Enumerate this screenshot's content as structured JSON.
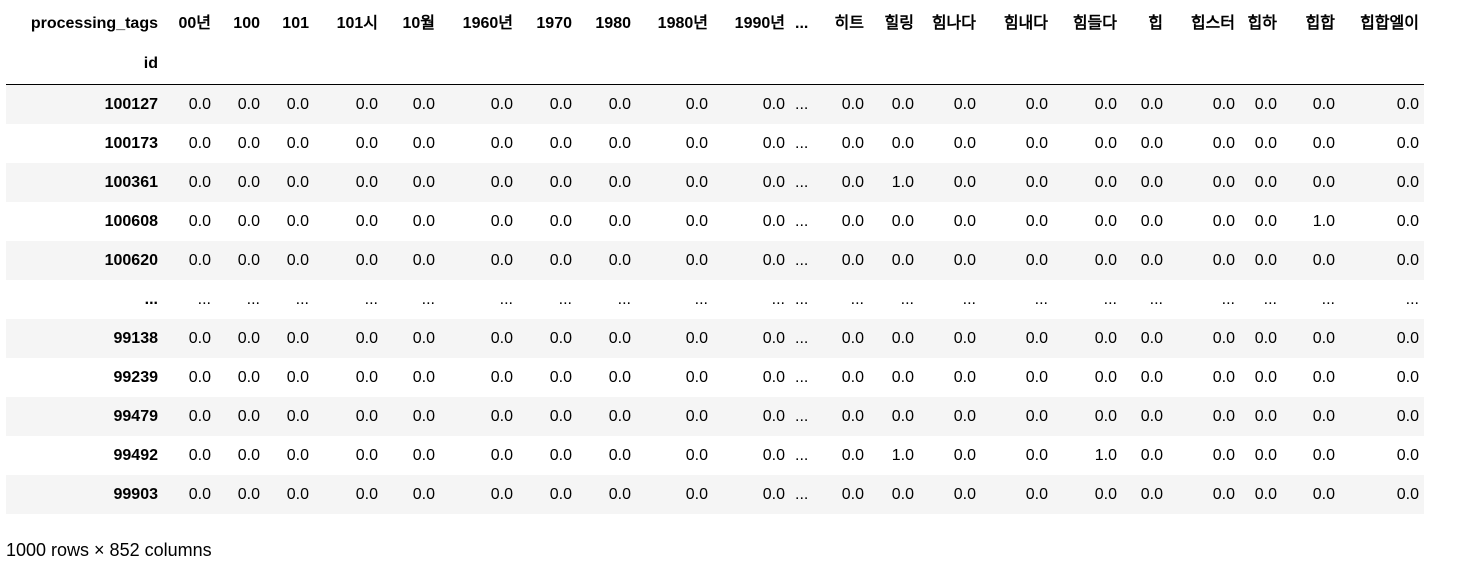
{
  "table": {
    "index_name": "processing_tags",
    "row_index_label": "id",
    "columns": [
      "00년",
      "100",
      "101",
      "101시",
      "10월",
      "1960년",
      "1970",
      "1980",
      "1980년",
      "1990년",
      "...",
      "히트",
      "힐링",
      "힘나다",
      "힘내다",
      "힘들다",
      "힙",
      "힙스터",
      "힙하",
      "힙합",
      "힙합엘이"
    ],
    "rows": [
      {
        "id": "100127",
        "values": [
          "0.0",
          "0.0",
          "0.0",
          "0.0",
          "0.0",
          "0.0",
          "0.0",
          "0.0",
          "0.0",
          "0.0",
          "...",
          "0.0",
          "0.0",
          "0.0",
          "0.0",
          "0.0",
          "0.0",
          "0.0",
          "0.0",
          "0.0",
          "0.0"
        ]
      },
      {
        "id": "100173",
        "values": [
          "0.0",
          "0.0",
          "0.0",
          "0.0",
          "0.0",
          "0.0",
          "0.0",
          "0.0",
          "0.0",
          "0.0",
          "...",
          "0.0",
          "0.0",
          "0.0",
          "0.0",
          "0.0",
          "0.0",
          "0.0",
          "0.0",
          "0.0",
          "0.0"
        ]
      },
      {
        "id": "100361",
        "values": [
          "0.0",
          "0.0",
          "0.0",
          "0.0",
          "0.0",
          "0.0",
          "0.0",
          "0.0",
          "0.0",
          "0.0",
          "...",
          "0.0",
          "1.0",
          "0.0",
          "0.0",
          "0.0",
          "0.0",
          "0.0",
          "0.0",
          "0.0",
          "0.0"
        ]
      },
      {
        "id": "100608",
        "values": [
          "0.0",
          "0.0",
          "0.0",
          "0.0",
          "0.0",
          "0.0",
          "0.0",
          "0.0",
          "0.0",
          "0.0",
          "...",
          "0.0",
          "0.0",
          "0.0",
          "0.0",
          "0.0",
          "0.0",
          "0.0",
          "0.0",
          "1.0",
          "0.0"
        ]
      },
      {
        "id": "100620",
        "values": [
          "0.0",
          "0.0",
          "0.0",
          "0.0",
          "0.0",
          "0.0",
          "0.0",
          "0.0",
          "0.0",
          "0.0",
          "...",
          "0.0",
          "0.0",
          "0.0",
          "0.0",
          "0.0",
          "0.0",
          "0.0",
          "0.0",
          "0.0",
          "0.0"
        ]
      },
      {
        "id": "...",
        "values": [
          "...",
          "...",
          "...",
          "...",
          "...",
          "...",
          "...",
          "...",
          "...",
          "...",
          "...",
          "...",
          "...",
          "...",
          "...",
          "...",
          "...",
          "...",
          "...",
          "...",
          "..."
        ]
      },
      {
        "id": "99138",
        "values": [
          "0.0",
          "0.0",
          "0.0",
          "0.0",
          "0.0",
          "0.0",
          "0.0",
          "0.0",
          "0.0",
          "0.0",
          "...",
          "0.0",
          "0.0",
          "0.0",
          "0.0",
          "0.0",
          "0.0",
          "0.0",
          "0.0",
          "0.0",
          "0.0"
        ]
      },
      {
        "id": "99239",
        "values": [
          "0.0",
          "0.0",
          "0.0",
          "0.0",
          "0.0",
          "0.0",
          "0.0",
          "0.0",
          "0.0",
          "0.0",
          "...",
          "0.0",
          "0.0",
          "0.0",
          "0.0",
          "0.0",
          "0.0",
          "0.0",
          "0.0",
          "0.0",
          "0.0"
        ]
      },
      {
        "id": "99479",
        "values": [
          "0.0",
          "0.0",
          "0.0",
          "0.0",
          "0.0",
          "0.0",
          "0.0",
          "0.0",
          "0.0",
          "0.0",
          "...",
          "0.0",
          "0.0",
          "0.0",
          "0.0",
          "0.0",
          "0.0",
          "0.0",
          "0.0",
          "0.0",
          "0.0"
        ]
      },
      {
        "id": "99492",
        "values": [
          "0.0",
          "0.0",
          "0.0",
          "0.0",
          "0.0",
          "0.0",
          "0.0",
          "0.0",
          "0.0",
          "0.0",
          "...",
          "0.0",
          "1.0",
          "0.0",
          "0.0",
          "1.0",
          "0.0",
          "0.0",
          "0.0",
          "0.0",
          "0.0"
        ]
      },
      {
        "id": "99903",
        "values": [
          "0.0",
          "0.0",
          "0.0",
          "0.0",
          "0.0",
          "0.0",
          "0.0",
          "0.0",
          "0.0",
          "0.0",
          "...",
          "0.0",
          "0.0",
          "0.0",
          "0.0",
          "0.0",
          "0.0",
          "0.0",
          "0.0",
          "0.0",
          "0.0"
        ]
      }
    ]
  },
  "footer": {
    "shape_text": "1000 rows × 852 columns"
  },
  "colors": {
    "stripe_row": "#f5f5f5",
    "header_rule": "#000000",
    "text": "#000000"
  }
}
